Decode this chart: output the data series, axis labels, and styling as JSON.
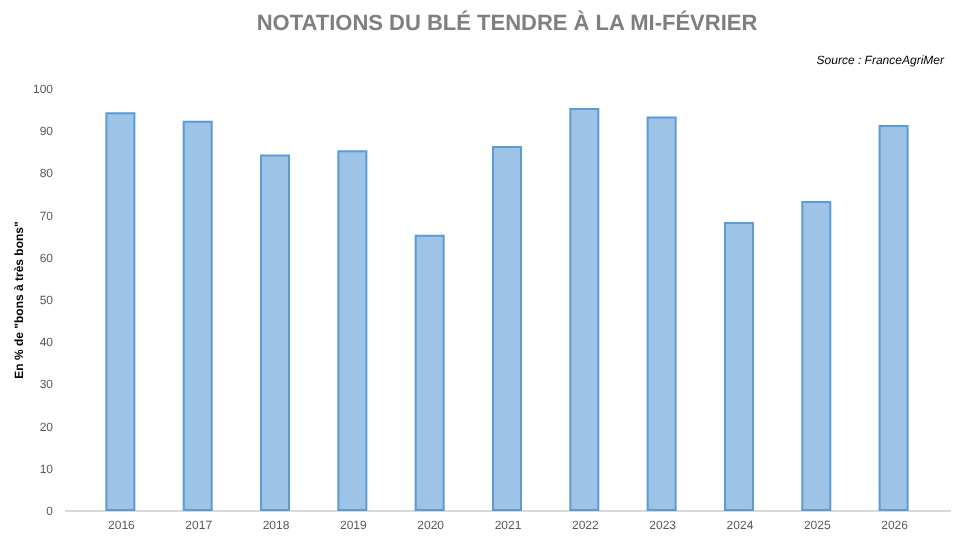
{
  "chart_data": {
    "type": "bar",
    "title": "NOTATIONS DU BLÉ TENDRE À LA MI-FÉVRIER",
    "ylabel": "En % de \"bons à très bons\"",
    "annotations": [
      "Source : FranceAgriMer"
    ],
    "categories": [
      "2016",
      "2017",
      "2018",
      "2019",
      "2020",
      "2021",
      "2022",
      "2023",
      "2024",
      "2025",
      "2026"
    ],
    "values": [
      94,
      92,
      84,
      85,
      65,
      86,
      95,
      93,
      68,
      73,
      91
    ],
    "color": "#9dc3e6",
    "ylim": [
      0,
      100
    ],
    "yticks": [
      0,
      10,
      20,
      30,
      40,
      50,
      60,
      70,
      80,
      90,
      100
    ],
    "grid": false
  }
}
